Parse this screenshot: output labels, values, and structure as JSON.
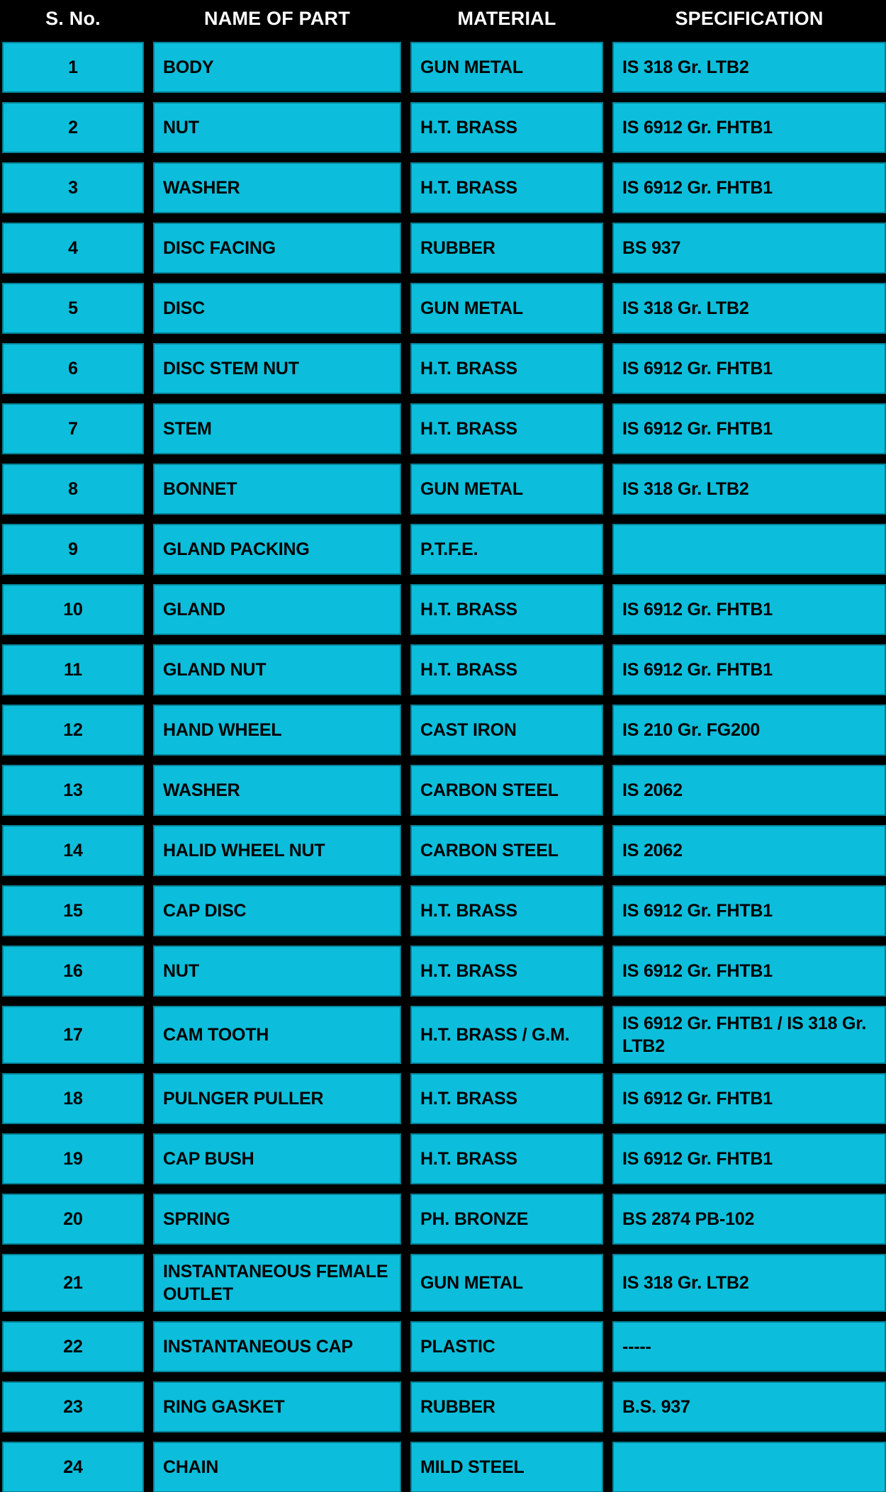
{
  "theme": {
    "background_color": "#000000",
    "cell_fill_color": "#0CBEDB",
    "cell_text_color": "#000000",
    "header_text_color": "#FFFFFF"
  },
  "table": {
    "columns": [
      {
        "key": "sno",
        "label": "S. No."
      },
      {
        "key": "name",
        "label": "NAME OF PART"
      },
      {
        "key": "material",
        "label": "MATERIAL"
      },
      {
        "key": "spec",
        "label": "SPECIFICATION"
      }
    ],
    "rows": [
      {
        "sno": "1",
        "name": "BODY",
        "material": "GUN METAL",
        "spec": "IS 318 Gr. LTB2"
      },
      {
        "sno": "2",
        "name": "NUT",
        "material": "H.T. BRASS",
        "spec": "IS 6912 Gr. FHTB1"
      },
      {
        "sno": "3",
        "name": "WASHER",
        "material": "H.T. BRASS",
        "spec": "IS 6912 Gr. FHTB1"
      },
      {
        "sno": "4",
        "name": "DISC FACING",
        "material": "RUBBER",
        "spec": "BS 937"
      },
      {
        "sno": "5",
        "name": "DISC",
        "material": "GUN METAL",
        "spec": "IS 318 Gr. LTB2"
      },
      {
        "sno": "6",
        "name": "DISC STEM NUT",
        "material": "H.T. BRASS",
        "spec": "IS 6912 Gr. FHTB1"
      },
      {
        "sno": "7",
        "name": "STEM",
        "material": "H.T. BRASS",
        "spec": "IS 6912 Gr. FHTB1"
      },
      {
        "sno": "8",
        "name": "BONNET",
        "material": "GUN METAL",
        "spec": "IS 318 Gr. LTB2"
      },
      {
        "sno": "9",
        "name": "GLAND PACKING",
        "material": "P.T.F.E.",
        "spec": ""
      },
      {
        "sno": "10",
        "name": "GLAND",
        "material": "H.T. BRASS",
        "spec": "IS 6912 Gr. FHTB1"
      },
      {
        "sno": "11",
        "name": "GLAND NUT",
        "material": "H.T. BRASS",
        "spec": "IS 6912 Gr. FHTB1"
      },
      {
        "sno": "12",
        "name": "HAND WHEEL",
        "material": "CAST IRON",
        "spec": "IS 210 Gr. FG200"
      },
      {
        "sno": "13",
        "name": "WASHER",
        "material": "CARBON STEEL",
        "spec": "IS 2062"
      },
      {
        "sno": "14",
        "name": "HALID WHEEL NUT",
        "material": "CARBON STEEL",
        "spec": "IS 2062"
      },
      {
        "sno": "15",
        "name": "CAP DISC",
        "material": "H.T. BRASS",
        "spec": "IS 6912 Gr. FHTB1"
      },
      {
        "sno": "16",
        "name": "NUT",
        "material": "H.T. BRASS",
        "spec": "IS 6912 Gr. FHTB1"
      },
      {
        "sno": "17",
        "name": "CAM TOOTH",
        "material": "H.T. BRASS / G.M.",
        "spec": "IS 6912 Gr. FHTB1 / IS 318 Gr. LTB2"
      },
      {
        "sno": "18",
        "name": "PULNGER PULLER",
        "material": "H.T. BRASS",
        "spec": "IS 6912 Gr. FHTB1"
      },
      {
        "sno": "19",
        "name": "CAP BUSH",
        "material": "H.T. BRASS",
        "spec": "IS 6912 Gr. FHTB1"
      },
      {
        "sno": "20",
        "name": "SPRING",
        "material": "PH. BRONZE",
        "spec": "BS 2874 PB-102"
      },
      {
        "sno": "21",
        "name": "INSTANTANEOUS FEMALE OUTLET",
        "material": "GUN METAL",
        "spec": "IS 318 Gr. LTB2"
      },
      {
        "sno": "22",
        "name": "INSTANTANEOUS CAP",
        "material": "PLASTIC",
        "spec": "-----"
      },
      {
        "sno": "23",
        "name": "RING GASKET",
        "material": "RUBBER",
        "spec": "B.S. 937"
      },
      {
        "sno": "24",
        "name": "CHAIN",
        "material": "MILD STEEL",
        "spec": ""
      }
    ]
  }
}
